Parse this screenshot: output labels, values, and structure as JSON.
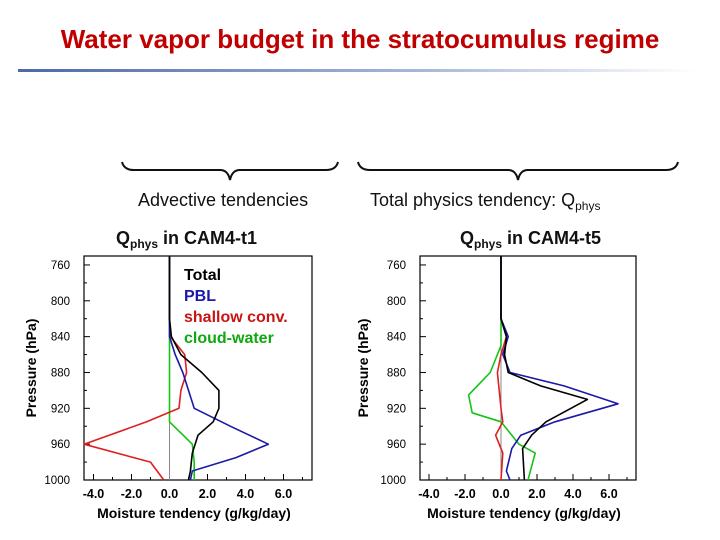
{
  "slide": {
    "title": "Water vapor budget in the stratocumulus regime",
    "caption_left": "Advective tendencies",
    "caption_right_prefix": "Total physics tendency: Q",
    "caption_right_sub": "phys",
    "left_sub_prefix": "Q",
    "left_sub_sub": "phys",
    "left_sub_suffix": " in CAM4-t1",
    "right_sub_prefix": "Q",
    "right_sub_sub": "phys",
    "right_sub_suffix": " in CAM4-t5"
  },
  "legend": [
    "Total",
    "PBL",
    "shallow conv.",
    "cloud-water"
  ],
  "colors": {
    "title": "#c00000",
    "Total": "#000000",
    "PBL": "#1a1aa6",
    "shallow conv.": "#e01f1f",
    "cloud-water": "#14c414",
    "vertical_ref": "#0a7a0a"
  },
  "chart_data": [
    {
      "type": "line",
      "xlabel": "Moisture tendency (g/kg/day)",
      "ylabel": "Pressure (hPa)",
      "xlim": [
        -4.5,
        7.5
      ],
      "ylim": [
        1000,
        750
      ],
      "y_inverted": true,
      "xticks": [
        "-4.0",
        "-2.0",
        "0.0",
        "2.0",
        "4.0",
        "6.0"
      ],
      "xtick_values": [
        -4,
        -2,
        0,
        2,
        4,
        6
      ],
      "yticks": [
        "760",
        "800",
        "840",
        "880",
        "920",
        "960",
        "1000"
      ],
      "ytick_values": [
        760,
        800,
        840,
        880,
        920,
        960,
        1000
      ],
      "series": [
        {
          "name": "Total",
          "points": [
            [
              0.0,
              750
            ],
            [
              0.0,
              820
            ],
            [
              0.1,
              840
            ],
            [
              0.6,
              860
            ],
            [
              1.7,
              880
            ],
            [
              2.6,
              900
            ],
            [
              2.6,
              920
            ],
            [
              2.3,
              935
            ],
            [
              1.5,
              950
            ],
            [
              1.2,
              970
            ],
            [
              1.1,
              990
            ],
            [
              1.0,
              1000
            ]
          ]
        },
        {
          "name": "PBL",
          "points": [
            [
              0.0,
              750
            ],
            [
              0.0,
              820
            ],
            [
              0.0,
              840
            ],
            [
              0.3,
              860
            ],
            [
              0.7,
              880
            ],
            [
              1.0,
              900
            ],
            [
              1.3,
              920
            ],
            [
              3.2,
              940
            ],
            [
              5.2,
              960
            ],
            [
              3.5,
              975
            ],
            [
              1.2,
              990
            ],
            [
              1.1,
              1000
            ]
          ]
        },
        {
          "name": "shallow conv.",
          "points": [
            [
              0.0,
              750
            ],
            [
              0.0,
              820
            ],
            [
              0.05,
              840
            ],
            [
              0.8,
              860
            ],
            [
              0.9,
              880
            ],
            [
              0.6,
              900
            ],
            [
              0.5,
              920
            ],
            [
              -1.2,
              935
            ],
            [
              -4.5,
              960
            ],
            [
              -1.0,
              980
            ],
            [
              -0.3,
              1000
            ]
          ]
        },
        {
          "name": "cloud-water",
          "points": [
            [
              0.0,
              750
            ],
            [
              0.0,
              820
            ],
            [
              0.0,
              840
            ],
            [
              0.0,
              860
            ],
            [
              0.0,
              880
            ],
            [
              0.0,
              900
            ],
            [
              0.0,
              920
            ],
            [
              0.0,
              935
            ],
            [
              1.2,
              960
            ],
            [
              1.3,
              980
            ],
            [
              1.3,
              1000
            ]
          ]
        }
      ]
    },
    {
      "type": "line",
      "xlabel": "Moisture tendency (g/kg/day)",
      "ylabel": "Pressure (hPa)",
      "xlim": [
        -4.5,
        7.5
      ],
      "ylim": [
        1000,
        750
      ],
      "y_inverted": true,
      "xticks": [
        "-4.0",
        "-2.0",
        "0.0",
        "2.0",
        "4.0",
        "6.0"
      ],
      "xtick_values": [
        -4,
        -2,
        0,
        2,
        4,
        6
      ],
      "yticks": [
        "760",
        "800",
        "840",
        "880",
        "920",
        "960",
        "1000"
      ],
      "ytick_values": [
        760,
        800,
        840,
        880,
        920,
        960,
        1000
      ],
      "series": [
        {
          "name": "Total",
          "points": [
            [
              0.0,
              750
            ],
            [
              0.0,
              820
            ],
            [
              0.3,
              840
            ],
            [
              0.2,
              860
            ],
            [
              0.4,
              880
            ],
            [
              2.2,
              895
            ],
            [
              4.8,
              910
            ],
            [
              2.5,
              935
            ],
            [
              1.7,
              950
            ],
            [
              1.2,
              965
            ],
            [
              1.3,
              1000
            ]
          ]
        },
        {
          "name": "PBL",
          "points": [
            [
              0.0,
              750
            ],
            [
              0.0,
              820
            ],
            [
              0.4,
              840
            ],
            [
              0.1,
              860
            ],
            [
              0.5,
              880
            ],
            [
              3.5,
              895
            ],
            [
              6.5,
              915
            ],
            [
              3.0,
              935
            ],
            [
              1.1,
              950
            ],
            [
              0.6,
              965
            ],
            [
              0.3,
              990
            ],
            [
              0.5,
              1000
            ]
          ]
        },
        {
          "name": "shallow conv.",
          "points": [
            [
              0.0,
              750
            ],
            [
              0.0,
              820
            ],
            [
              0.3,
              840
            ],
            [
              0.0,
              860
            ],
            [
              -0.2,
              880
            ],
            [
              -0.1,
              900
            ],
            [
              0.0,
              920
            ],
            [
              0.1,
              935
            ],
            [
              -0.3,
              950
            ],
            [
              0.1,
              970
            ],
            [
              0.0,
              1000
            ]
          ]
        },
        {
          "name": "cloud-water",
          "points": [
            [
              0.0,
              750
            ],
            [
              0.0,
              850
            ],
            [
              -0.6,
              880
            ],
            [
              -1.8,
              905
            ],
            [
              -1.6,
              925
            ],
            [
              0.0,
              935
            ],
            [
              1.0,
              960
            ],
            [
              1.9,
              970
            ],
            [
              1.5,
              1000
            ]
          ]
        }
      ]
    }
  ]
}
